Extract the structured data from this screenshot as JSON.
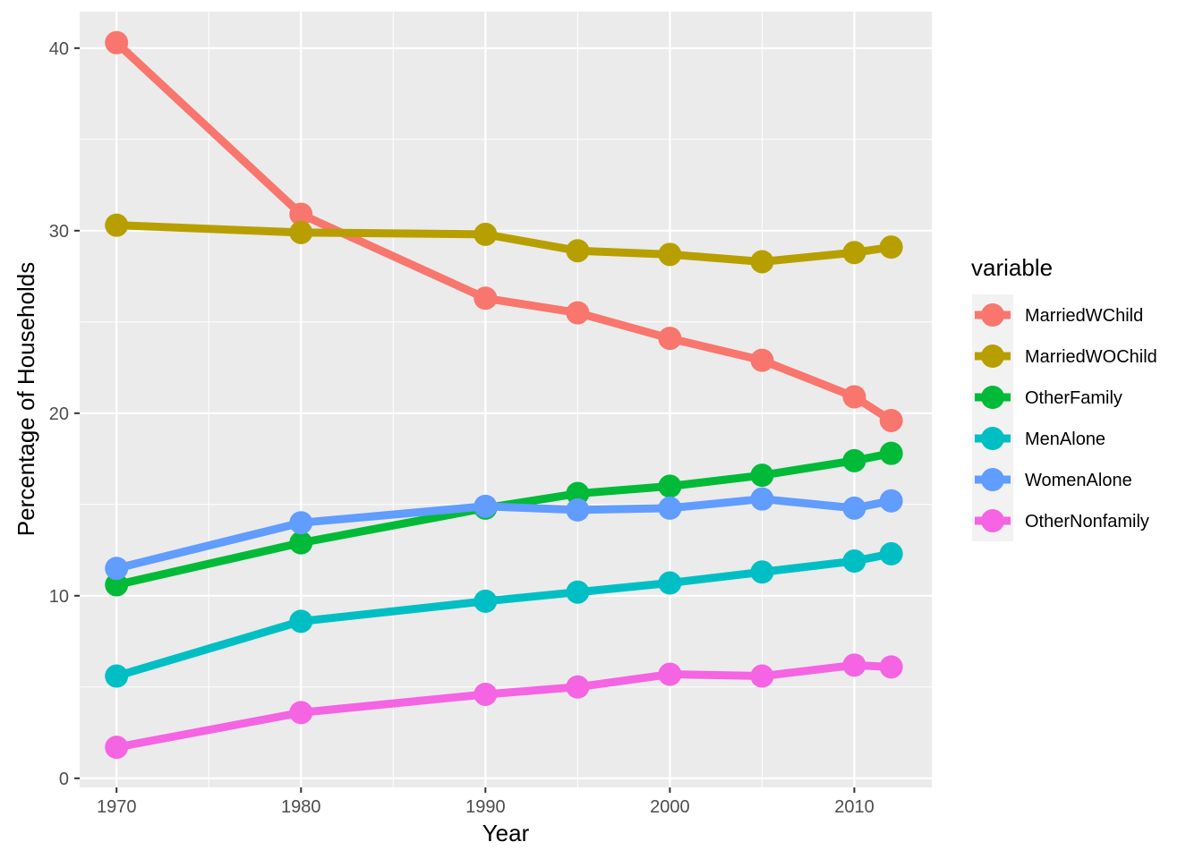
{
  "chart_data": {
    "type": "line",
    "xlabel": "Year",
    "ylabel": "Percentage of Households",
    "xlim": [
      1968.0,
      2014.2
    ],
    "ylim": [
      -0.5,
      42.0
    ],
    "x_ticks": [
      "1970",
      "1980",
      "1990",
      "2000",
      "2010"
    ],
    "y_ticks": [
      "0",
      "10",
      "20",
      "30",
      "40"
    ],
    "grid": true,
    "legend_title": "variable",
    "legend_position": "right",
    "x": [
      1970,
      1980,
      1990,
      1995,
      2000,
      2005,
      2010,
      2012
    ],
    "series": [
      {
        "name": "MarriedWChild",
        "color": "#F8766D",
        "values": [
          40.3,
          30.9,
          26.3,
          25.5,
          24.1,
          22.9,
          20.9,
          19.6
        ]
      },
      {
        "name": "MarriedWOChild",
        "color": "#B79F00",
        "values": [
          30.3,
          29.9,
          29.8,
          28.9,
          28.7,
          28.3,
          28.8,
          29.1
        ]
      },
      {
        "name": "OtherFamily",
        "color": "#00BA38",
        "values": [
          10.6,
          12.9,
          14.8,
          15.6,
          16.0,
          16.6,
          17.4,
          17.8
        ]
      },
      {
        "name": "MenAlone",
        "color": "#00BFC4",
        "values": [
          5.6,
          8.6,
          9.7,
          10.2,
          10.7,
          11.3,
          11.9,
          12.3
        ]
      },
      {
        "name": "WomenAlone",
        "color": "#619CFF",
        "values": [
          11.5,
          14.0,
          14.9,
          14.7,
          14.8,
          15.3,
          14.8,
          15.2
        ]
      },
      {
        "name": "OtherNonfamily",
        "color": "#F564E3",
        "values": [
          1.7,
          3.6,
          4.6,
          5.0,
          5.7,
          5.6,
          6.2,
          6.1
        ]
      }
    ]
  }
}
